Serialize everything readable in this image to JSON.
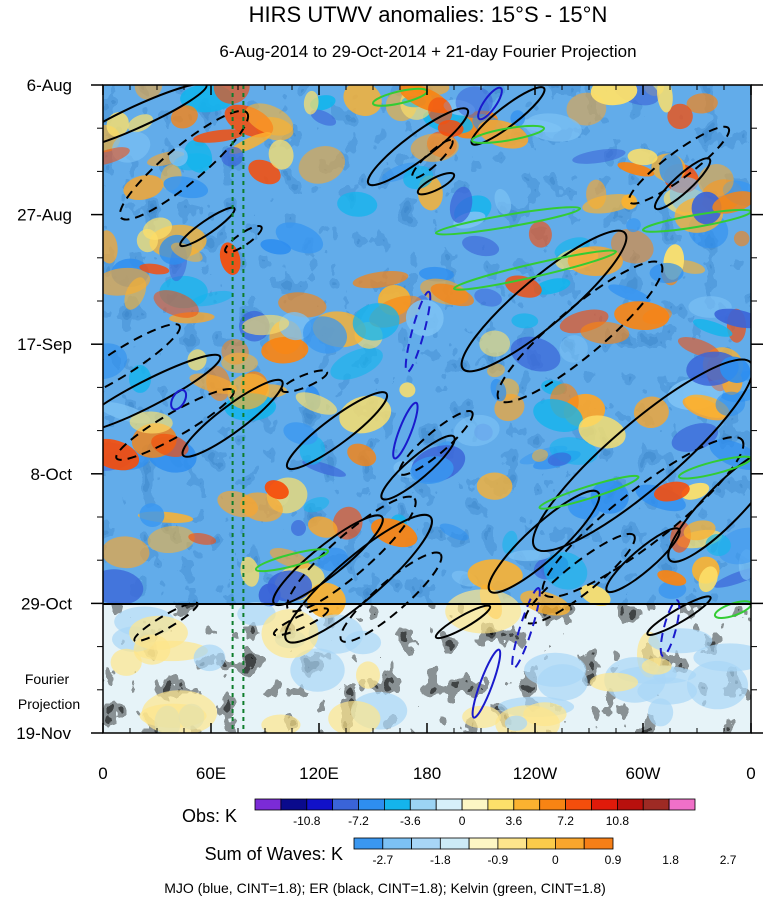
{
  "chart_data": {
    "type": "heatmap",
    "title": "HIRS UTWV anomalies: 15°S - 15°N",
    "subtitle": "6-Aug-2014 to 29-Oct-2014 + 21-day Fourier Projection",
    "x_ticks": [
      "0",
      "60E",
      "120E",
      "180",
      "120W",
      "60W",
      "0"
    ],
    "x_tick_lon": [
      0,
      60,
      120,
      180,
      240,
      300,
      360
    ],
    "x_range_lon": [
      0,
      360
    ],
    "y_ticks": [
      "6-Aug",
      "27-Aug",
      "17-Sep",
      "8-Oct",
      "29-Oct",
      "19-Nov"
    ],
    "y_tick_day": [
      0,
      21,
      42,
      63,
      84,
      105
    ],
    "y_range_day": [
      0,
      105
    ],
    "projection_start_day": 84,
    "projection_label": [
      "Fourier",
      "Projection"
    ],
    "reference_lons": [
      72,
      78
    ],
    "obs_colorbar": {
      "label": "Obs: K",
      "colors": [
        "#7b2bd6",
        "#0a0a8c",
        "#1111c8",
        "#3a64d8",
        "#2e8ef0",
        "#14b4ec",
        "#9cd4f4",
        "#d6f0fa",
        "#fdf7c4",
        "#fde06a",
        "#fbb230",
        "#f88413",
        "#f54e0c",
        "#e01a0a",
        "#b8100d",
        "#9e2a24",
        "#f070c8"
      ],
      "tick_labels": [
        "-10.8",
        "-7.2",
        "-3.6",
        "0",
        "3.6",
        "7.2",
        "10.8"
      ]
    },
    "waves_colorbar": {
      "label": "Sum of Waves: K",
      "colors": [
        "#3a97f0",
        "#7cc1f4",
        "#a8d6f7",
        "#cdebf7",
        "#fdf7c4",
        "#fde58c",
        "#fbcb4a",
        "#f9a62d",
        "#f67f17"
      ],
      "tick_labels": [
        "-2.7",
        "-1.8",
        "-0.9",
        "0",
        "0.9",
        "1.8",
        "2.7"
      ]
    },
    "contour_legend": "MJO (blue, CINT=1.8); ER (black, CINT=1.8); Kelvin (green, CINT=1.8)",
    "contour_colors": {
      "mjo": "#1a1acc",
      "er": "#000000",
      "kelvin": "#33cc33",
      "reference": "#0e7d2c"
    },
    "er_contours": [
      {
        "lon": 20,
        "day": 5,
        "dlon": 75,
        "dday": 10,
        "sign": 1
      },
      {
        "lon": 45,
        "day": 13,
        "dlon": 70,
        "dday": 17,
        "sign": -1
      },
      {
        "lon": 10,
        "day": 45,
        "dlon": 65,
        "dday": 12,
        "sign": -1
      },
      {
        "lon": 25,
        "day": 50,
        "dlon": 80,
        "dday": 12,
        "sign": 1
      },
      {
        "lon": 40,
        "day": 55,
        "dlon": 65,
        "dday": 11,
        "sign": -1
      },
      {
        "lon": 72,
        "day": 54,
        "dlon": 55,
        "dday": 12,
        "sign": 1
      },
      {
        "lon": 58,
        "day": 23,
        "dlon": 30,
        "dday": 6,
        "sign": 1
      },
      {
        "lon": 78,
        "day": 25,
        "dlon": 20,
        "dday": 4,
        "sign": -1
      },
      {
        "lon": 130,
        "day": 56,
        "dlon": 55,
        "dday": 12,
        "sign": 1
      },
      {
        "lon": 112,
        "day": 48,
        "dlon": 25,
        "dday": 3,
        "sign": -1
      },
      {
        "lon": 175,
        "day": 62,
        "dlon": 40,
        "dday": 10,
        "sign": 1
      },
      {
        "lon": 185,
        "day": 58,
        "dlon": 40,
        "dday": 10,
        "sign": -1
      },
      {
        "lon": 175,
        "day": 10,
        "dlon": 55,
        "dday": 12,
        "sign": 1
      },
      {
        "lon": 183,
        "day": 12,
        "dlon": 22,
        "dday": 6,
        "sign": -1
      },
      {
        "lon": 185,
        "day": 16,
        "dlon": 20,
        "dday": 3,
        "sign": 1
      },
      {
        "lon": 225,
        "day": 5,
        "dlon": 40,
        "dday": 9,
        "sign": 1
      },
      {
        "lon": 245,
        "day": 35,
        "dlon": 90,
        "dday": 22,
        "sign": 1
      },
      {
        "lon": 265,
        "day": 40,
        "dlon": 90,
        "dday": 22,
        "sign": -1
      },
      {
        "lon": 300,
        "day": 60,
        "dlon": 120,
        "dday": 30,
        "sign": 1
      },
      {
        "lon": 300,
        "day": 70,
        "dlon": 110,
        "dday": 25,
        "sign": -1
      },
      {
        "lon": 320,
        "day": 13,
        "dlon": 55,
        "dday": 12,
        "sign": -1
      },
      {
        "lon": 322,
        "day": 16,
        "dlon": 30,
        "dday": 8,
        "sign": 1
      },
      {
        "lon": 125,
        "day": 77,
        "dlon": 60,
        "dday": 14,
        "sign": 1
      },
      {
        "lon": 138,
        "day": 76,
        "dlon": 70,
        "dday": 18,
        "sign": -1
      },
      {
        "lon": 142,
        "day": 80,
        "dlon": 80,
        "dday": 20,
        "sign": 1
      },
      {
        "lon": 160,
        "day": 83,
        "dlon": 55,
        "dday": 14,
        "sign": -1
      },
      {
        "lon": 245,
        "day": 74,
        "dlon": 60,
        "dday": 16,
        "sign": 1
      },
      {
        "lon": 265,
        "day": 80,
        "dlon": 60,
        "dday": 14,
        "sign": -1
      },
      {
        "lon": 300,
        "day": 77,
        "dlon": 40,
        "dday": 10,
        "sign": 1
      },
      {
        "lon": 345,
        "day": 68,
        "dlon": 60,
        "dday": 18,
        "sign": 1
      },
      {
        "lon": 35,
        "day": 87,
        "dlon": 35,
        "dday": 6,
        "sign": -1
      },
      {
        "lon": 110,
        "day": 87,
        "dlon": 30,
        "dday": 4,
        "sign": -1
      },
      {
        "lon": 200,
        "day": 87,
        "dlon": 30,
        "dday": 5,
        "sign": 1
      },
      {
        "lon": 320,
        "day": 86,
        "dlon": 35,
        "dday": 6,
        "sign": 1
      }
    ],
    "mjo_contours": [
      {
        "lon": 215,
        "day": 3,
        "dlon": 12,
        "dday": 5,
        "sign": 1
      },
      {
        "lon": 175,
        "day": 40,
        "dlon": 12,
        "dday": 13,
        "sign": -1
      },
      {
        "lon": 168,
        "day": 56,
        "dlon": 12,
        "dday": 9,
        "sign": 1
      },
      {
        "lon": 42,
        "day": 51,
        "dlon": 6,
        "dday": 3,
        "sign": 1
      },
      {
        "lon": 235,
        "day": 88,
        "dlon": 14,
        "dday": 13,
        "sign": -1
      },
      {
        "lon": 315,
        "day": 88,
        "dlon": 8,
        "dday": 9,
        "sign": -1
      },
      {
        "lon": 213,
        "day": 97,
        "dlon": 14,
        "dday": 11,
        "sign": 1
      }
    ],
    "kelvin_contours": [
      {
        "lon": 240,
        "day": 30,
        "dlon": 90,
        "dday": 6
      },
      {
        "lon": 225,
        "day": 22,
        "dlon": 80,
        "dday": 4
      },
      {
        "lon": 330,
        "day": 22,
        "dlon": 60,
        "dday": 3
      },
      {
        "lon": 270,
        "day": 66,
        "dlon": 55,
        "dday": 5
      },
      {
        "lon": 340,
        "day": 62,
        "dlon": 40,
        "dday": 3
      },
      {
        "lon": 105,
        "day": 77,
        "dlon": 40,
        "dday": 3
      },
      {
        "lon": 225,
        "day": 8,
        "dlon": 40,
        "dday": 2
      },
      {
        "lon": 165,
        "day": 2,
        "dlon": 30,
        "dday": 2
      },
      {
        "lon": 350,
        "day": 85,
        "dlon": 20,
        "dday": 2
      }
    ]
  }
}
